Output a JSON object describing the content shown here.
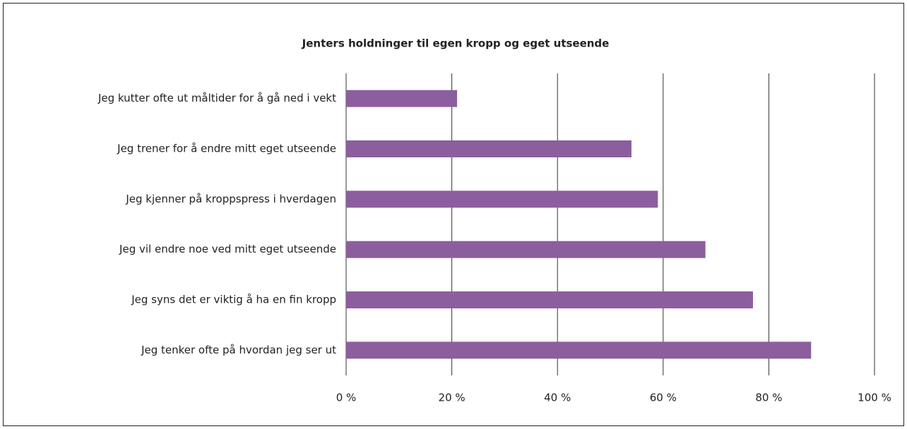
{
  "chart_data": {
    "type": "barh",
    "title": "Jenters holdninger til egen kropp og eget utseende",
    "categories": [
      "Jeg kutter ofte ut måltider for å gå ned i vekt",
      "Jeg trener for å endre mitt eget utseende",
      "Jeg kjenner på kroppspress i hverdagen",
      "Jeg vil endre noe ved mitt eget utseende",
      "Jeg syns det er viktig å ha en fin kropp",
      "Jeg tenker ofte på hvordan jeg ser ut"
    ],
    "values": [
      21,
      54,
      59,
      68,
      77,
      88
    ],
    "color": "#8c5e9e",
    "xlim": [
      0,
      100
    ],
    "xticks": [
      {
        "value": 0,
        "label": "0 %"
      },
      {
        "value": 20,
        "label": "20 %"
      },
      {
        "value": 40,
        "label": "40 %"
      },
      {
        "value": 60,
        "label": "60 %"
      },
      {
        "value": 80,
        "label": "80 %"
      },
      {
        "value": 100,
        "label": "100 %"
      }
    ],
    "grid": true
  }
}
